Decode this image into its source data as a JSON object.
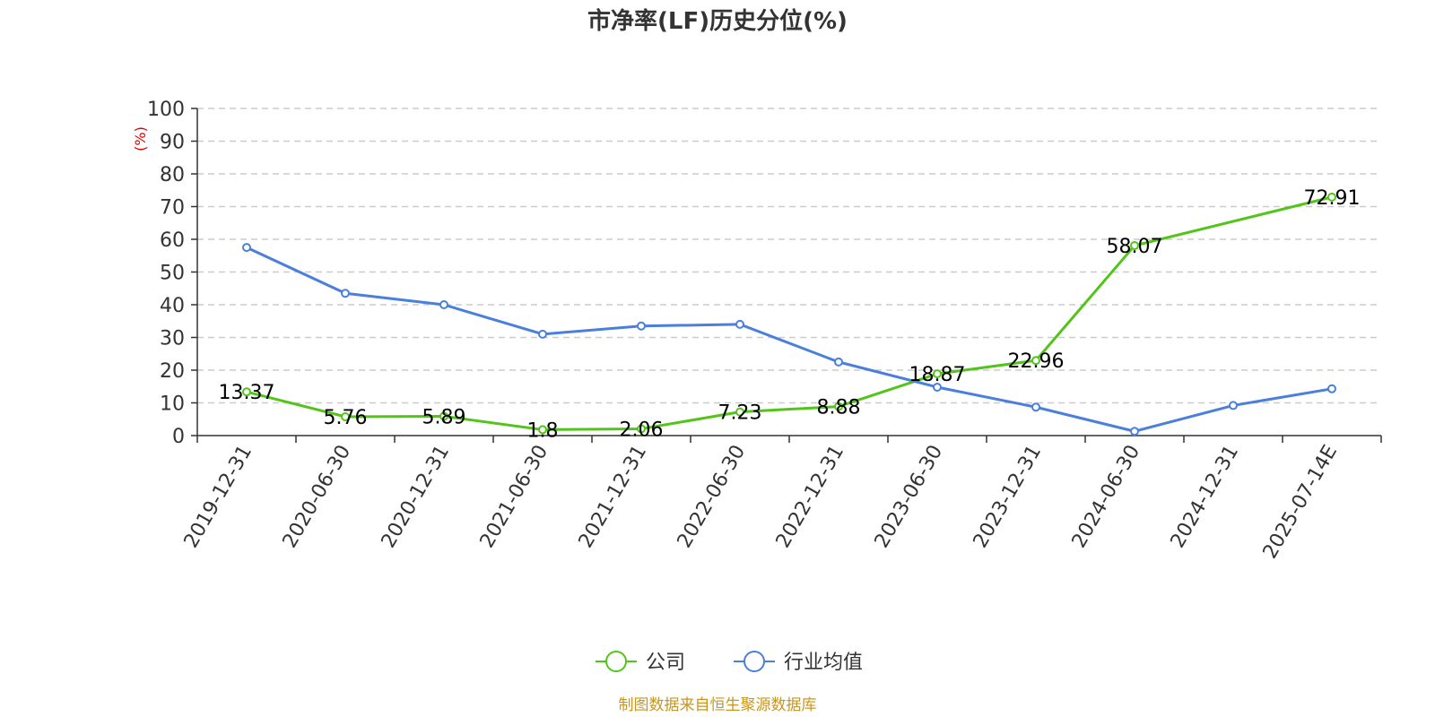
{
  "chart_data": {
    "type": "line",
    "title": "市净率(LF)历史分位(%)",
    "y_unit": "(%)",
    "categories": [
      "2019-12-31",
      "2020-06-30",
      "2020-12-31",
      "2021-06-30",
      "2021-12-31",
      "2022-06-30",
      "2022-12-31",
      "2023-06-30",
      "2023-12-31",
      "2024-06-30",
      "2024-12-31",
      "2025-07-14E"
    ],
    "ylim": [
      0,
      100
    ],
    "yticks": [
      "0",
      "10",
      "20",
      "30",
      "40",
      "50",
      "60",
      "70",
      "80",
      "90",
      "100"
    ],
    "grid": true,
    "legend_position": "bottom",
    "series": [
      {
        "name": "公司",
        "color": "#52c41a",
        "values": [
          13.37,
          5.76,
          5.89,
          1.8,
          2.06,
          7.23,
          8.88,
          18.87,
          22.96,
          58.07,
          null,
          72.91
        ],
        "labels": [
          "13.37",
          "5.76",
          "5.89",
          "1.8",
          "2.06",
          "7.23",
          "8.88",
          "18.87",
          "22.96",
          "58.07",
          "",
          "72.91"
        ]
      },
      {
        "name": "行业均值",
        "color": "#4a7fdc",
        "values": [
          57.5,
          43.5,
          40.0,
          31.0,
          33.5,
          34.0,
          22.5,
          14.8,
          8.7,
          1.3,
          9.2,
          14.3
        ],
        "labels": []
      }
    ],
    "source": "制图数据来自恒生聚源数据库",
    "source_color": "#c8961e"
  }
}
